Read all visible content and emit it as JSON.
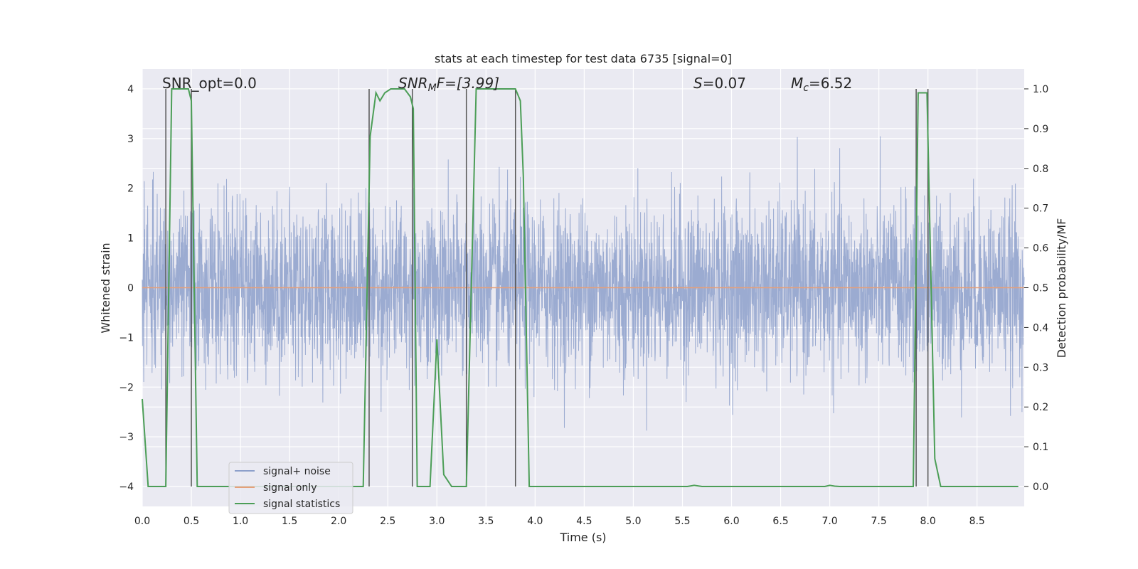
{
  "chart_data": {
    "type": "line",
    "title": "stats at each timestep for test data 6735 [signal=0]",
    "xlabel": "Time (s)",
    "ylabel_left": "Whitened strain",
    "ylabel_right": "Detection probability/MF",
    "xlim": [
      0.0,
      8.98
    ],
    "ylim_left": [
      -4.4,
      4.4
    ],
    "ylim_right": [
      -0.05,
      1.05
    ],
    "xticks": [
      0.0,
      0.5,
      1.0,
      1.5,
      2.0,
      2.5,
      3.0,
      3.5,
      4.0,
      4.5,
      5.0,
      5.5,
      6.0,
      6.5,
      7.0,
      7.5,
      8.0,
      8.5
    ],
    "xtick_labels": [
      "0.0",
      "0.5",
      "1.0",
      "1.5",
      "2.0",
      "2.5",
      "3.0",
      "3.5",
      "4.0",
      "4.5",
      "5.0",
      "5.5",
      "6.0",
      "6.5",
      "7.0",
      "7.5",
      "8.0",
      "8.5"
    ],
    "yticks_left": [
      -4,
      -3,
      -2,
      -1,
      0,
      1,
      2,
      3,
      4
    ],
    "ytick_labels_left": [
      "−4",
      "−3",
      "−2",
      "−1",
      "0",
      "1",
      "2",
      "3",
      "4"
    ],
    "yticks_right": [
      0.0,
      0.1,
      0.2,
      0.3,
      0.4,
      0.5,
      0.6,
      0.7,
      0.8,
      0.9,
      1.0
    ],
    "ytick_labels_right": [
      "0.0",
      "0.1",
      "0.2",
      "0.3",
      "0.4",
      "0.5",
      "0.6",
      "0.7",
      "0.8",
      "0.9",
      "1.0"
    ],
    "grid": true,
    "legend_position": "lower-left",
    "annotations": {
      "snr_opt": "SNR_opt=0.0",
      "snr_mf_main": "SNR",
      "snr_mf_sub": "M",
      "snr_mf_rest": "F=[3.99]",
      "s_main": "S",
      "s_rest": "=0.07",
      "mc_main": "M",
      "mc_sub": "c",
      "mc_rest": "=6.52"
    },
    "series": [
      {
        "name": "signal+ noise",
        "color": "#8da0cb",
        "axis": "left",
        "description": "whitened strain noise, approx. Gaussian, amplitude mostly within ±3, sampled densely over 0–9 s",
        "amplitude_sigma": 0.85
      },
      {
        "name": "signal only",
        "color": "#e5a07a",
        "axis": "left",
        "x": [
          0.0,
          8.98
        ],
        "y": [
          0.0,
          0.0
        ]
      },
      {
        "name": "signal statistics",
        "color": "#4c9e57",
        "axis": "right",
        "x": [
          0.0,
          0.06,
          0.24,
          0.3,
          0.33,
          0.47,
          0.5,
          0.56,
          0.62,
          0.7,
          2.25,
          2.32,
          2.38,
          2.42,
          2.47,
          2.53,
          2.6,
          2.67,
          2.73,
          2.76,
          2.8,
          2.88,
          2.93,
          3.0,
          3.07,
          3.15,
          3.25,
          3.3,
          3.4,
          3.8,
          3.85,
          3.88,
          3.94,
          5.55,
          5.62,
          5.7,
          6.95,
          7.0,
          7.05,
          7.1,
          7.85,
          7.9,
          7.94,
          7.99,
          8.07,
          8.13,
          8.3,
          8.5,
          8.92
        ],
        "y": [
          0.22,
          0.0,
          0.0,
          1.0,
          1.0,
          1.0,
          0.97,
          0.0,
          0.0,
          0.0,
          0.0,
          0.88,
          0.99,
          0.97,
          0.99,
          1.0,
          1.0,
          1.0,
          0.98,
          0.95,
          0.0,
          0.0,
          0.0,
          0.37,
          0.03,
          0.0,
          0.0,
          0.0,
          1.0,
          1.0,
          0.97,
          0.78,
          0.0,
          0.0,
          0.003,
          0.0,
          0.0,
          0.003,
          0.001,
          0.0,
          0.0,
          0.99,
          0.99,
          0.99,
          0.07,
          0.0,
          0.0,
          0.0,
          0.0
        ]
      }
    ],
    "vertical_markers": [
      0.24,
      0.5,
      2.31,
      2.75,
      3.3,
      3.8,
      7.88,
      8.0
    ],
    "marker_color": "#555555"
  }
}
